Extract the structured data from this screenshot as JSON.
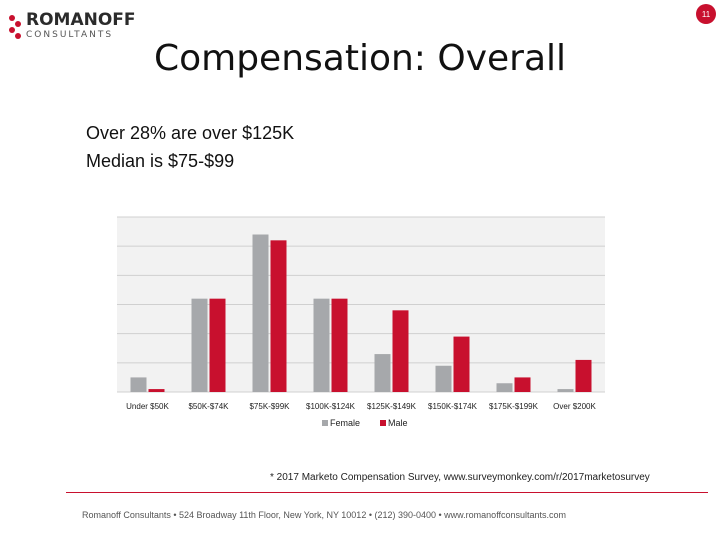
{
  "logo": {
    "name": "ROMANOFF",
    "sub": "CONSULTANTS"
  },
  "page_number": "11",
  "title": "Compensation: Overall",
  "bullets": [
    "Over 28% are over $125K",
    "Median is $75-$99"
  ],
  "colors": {
    "female": "#a6a8ab",
    "male": "#c8102e",
    "grid": "#d0d0d0",
    "plot_bg": "#f2f2f2"
  },
  "chart_data": {
    "type": "bar",
    "categories": [
      "Under $50K",
      "$50K-$74K",
      "$75K-$99K",
      "$100K-$124K",
      "$125K-$149K",
      "$150K-$174K",
      "$175K-$199K",
      "Over $200K"
    ],
    "series": [
      {
        "name": "Female",
        "values": [
          5,
          32,
          54,
          32,
          13,
          9,
          3,
          1
        ]
      },
      {
        "name": "Male",
        "values": [
          1,
          32,
          52,
          32,
          28,
          19,
          5,
          11
        ]
      }
    ],
    "ylim": [
      0,
      60
    ],
    "grid": true,
    "legend": "bottom"
  },
  "footnote": "* 2017 Marketo Compensation Survey, www.surveymonkey.com/r/2017marketosurvey",
  "footer": "Romanoff Consultants  •  524 Broadway 11th Floor, New York, NY 10012 • (212) 390-0400 • www.romanoffconsultants.com"
}
